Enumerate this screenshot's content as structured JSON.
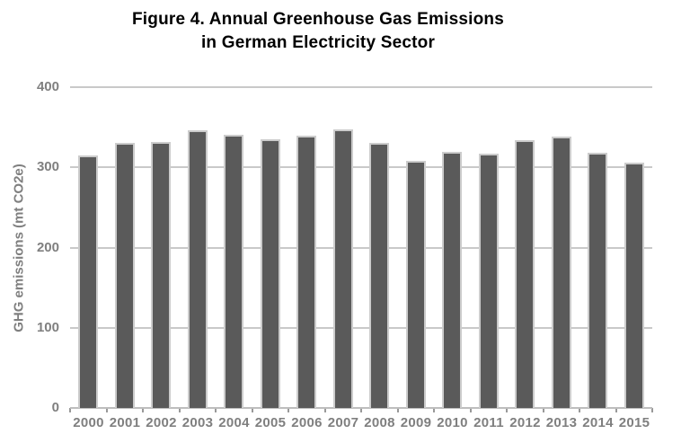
{
  "title": {
    "line1": "Figure 4. Annual Greenhouse Gas Emissions",
    "line2": "in German Electricity Sector"
  },
  "chart_data": {
    "type": "bar",
    "title": "Figure 4. Annual Greenhouse Gas Emissions in German Electricity Sector",
    "xlabel": "",
    "ylabel": "GHG emissions (mt CO2e)",
    "categories": [
      "2000",
      "2001",
      "2002",
      "2003",
      "2004",
      "2005",
      "2006",
      "2007",
      "2008",
      "2009",
      "2010",
      "2011",
      "2012",
      "2013",
      "2014",
      "2015"
    ],
    "values": [
      315,
      331,
      332,
      346,
      341,
      335,
      339,
      347,
      330,
      308,
      319,
      317,
      334,
      338,
      318,
      306
    ],
    "ylim": [
      0,
      400
    ],
    "yticks": [
      0,
      100,
      200,
      300,
      400
    ],
    "grid": true,
    "legend": "none",
    "colors": {
      "bar": "#5a5a5a",
      "bar_stroke": "#cccccc",
      "gridline": "#c9c9c9",
      "baseline": "#bdbdbd",
      "tick": "#999999",
      "label": "#7f7f7f",
      "title": "#000000"
    }
  }
}
